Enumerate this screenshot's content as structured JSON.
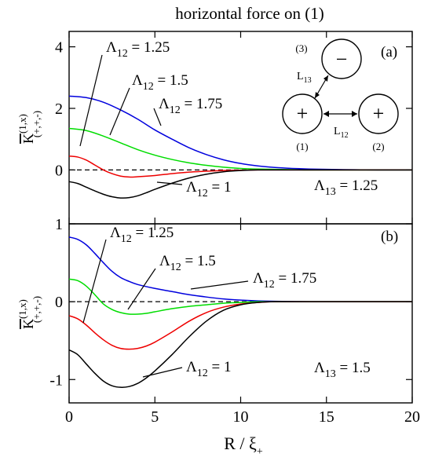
{
  "title": "horizontal force on (1)",
  "xlabel": "R / ξ",
  "xlabel_sub": "+",
  "ylabel": {
    "main": "K",
    "sup": "(1,x)",
    "sub": "(+,+,-)"
  },
  "colors": {
    "1": "#000000",
    "1.25": "#ee0000",
    "1.5": "#00dd00",
    "1.75": "#0000dd"
  },
  "chart_data": [
    {
      "type": "line",
      "panel": "(a)",
      "xlim": [
        0,
        20
      ],
      "ylim": [
        -1.75,
        4.5
      ],
      "xticks": [
        0,
        5,
        10,
        15,
        20
      ],
      "yticks": [
        -2,
        0,
        2,
        4
      ],
      "ytick_labels": [
        "",
        "0",
        "2",
        "4"
      ],
      "annotation": "Λ13 = 1.25",
      "series": [
        {
          "key": "1.75",
          "name": "Λ12 = 1.75",
          "x": [
            0,
            1,
            2,
            3,
            4,
            5,
            6,
            7,
            8,
            9,
            10,
            11,
            12,
            13,
            14,
            15,
            16,
            17,
            18,
            20
          ],
          "y": [
            2.4,
            2.35,
            2.2,
            1.95,
            1.65,
            1.3,
            1.0,
            0.72,
            0.5,
            0.33,
            0.21,
            0.13,
            0.08,
            0.05,
            0.03,
            0.02,
            0.01,
            0.005,
            0.0,
            0.0
          ]
        },
        {
          "key": "1.5",
          "name": "Λ12 = 1.5",
          "x": [
            0,
            1,
            2,
            3,
            4,
            5,
            6,
            7,
            8,
            9,
            10,
            11,
            12,
            13,
            14,
            16,
            18,
            20
          ],
          "y": [
            1.35,
            1.28,
            1.1,
            0.88,
            0.66,
            0.48,
            0.34,
            0.23,
            0.15,
            0.09,
            0.05,
            0.03,
            0.02,
            0.01,
            0.0,
            0.0,
            0.0,
            0.0
          ]
        },
        {
          "key": "1.25",
          "name": "Λ12 = 1.25",
          "x": [
            0,
            0.5,
            1,
            1.5,
            2,
            2.5,
            3,
            3.5,
            4,
            5,
            6,
            7,
            8,
            9,
            10,
            11,
            12,
            14,
            16,
            20
          ],
          "y": [
            0.45,
            0.42,
            0.32,
            0.16,
            0.0,
            -0.12,
            -0.2,
            -0.23,
            -0.22,
            -0.18,
            -0.12,
            -0.07,
            -0.04,
            -0.02,
            -0.01,
            0.0,
            0.0,
            0.0,
            0.0,
            0.0
          ]
        },
        {
          "key": "1",
          "name": "Λ12 = 1",
          "x": [
            0,
            0.5,
            1,
            1.5,
            2,
            2.5,
            3,
            3.5,
            4,
            4.5,
            5,
            6,
            7,
            8,
            9,
            10,
            11,
            12,
            14,
            20
          ],
          "y": [
            -0.38,
            -0.44,
            -0.56,
            -0.68,
            -0.79,
            -0.87,
            -0.91,
            -0.9,
            -0.84,
            -0.74,
            -0.63,
            -0.43,
            -0.26,
            -0.14,
            -0.06,
            -0.02,
            0.0,
            0.0,
            0.0,
            0.0
          ]
        }
      ],
      "labels": [
        {
          "key": "1.25",
          "text": "Λ12 = 1.25"
        },
        {
          "key": "1.5",
          "text": "Λ12 = 1.5"
        },
        {
          "key": "1.75",
          "text": "Λ12 = 1.75"
        },
        {
          "key": "1",
          "text": "Λ12 = 1"
        }
      ],
      "inset": {
        "circles": [
          {
            "id": "(1)",
            "sign": "+"
          },
          {
            "id": "(2)",
            "sign": "+"
          },
          {
            "id": "(3)",
            "sign": "−"
          }
        ],
        "distances": [
          "L12",
          "L13"
        ]
      }
    },
    {
      "type": "line",
      "panel": "(b)",
      "xlim": [
        0,
        20
      ],
      "ylim": [
        -1.3,
        1.0
      ],
      "xticks": [
        0,
        5,
        10,
        15,
        20
      ],
      "yticks": [
        -1,
        0,
        1
      ],
      "ytick_labels": [
        "-1",
        "0",
        "1"
      ],
      "annotation": "Λ13 = 1.5",
      "series": [
        {
          "key": "1.75",
          "name": "Λ12 = 1.75",
          "x": [
            0,
            0.5,
            1,
            1.5,
            2,
            2.5,
            3,
            3.5,
            4,
            5,
            6,
            7,
            8,
            9,
            10,
            11,
            12,
            14,
            16,
            20
          ],
          "y": [
            0.83,
            0.8,
            0.73,
            0.62,
            0.5,
            0.39,
            0.31,
            0.26,
            0.22,
            0.17,
            0.13,
            0.09,
            0.06,
            0.035,
            0.02,
            0.01,
            0.005,
            0.0,
            0.0,
            0.0
          ]
        },
        {
          "key": "1.5",
          "name": "Λ12 = 1.5",
          "x": [
            0,
            0.5,
            1,
            1.5,
            2,
            2.5,
            3,
            3.5,
            4,
            4.5,
            5,
            6,
            7,
            8,
            9,
            10,
            11,
            12,
            14,
            20
          ],
          "y": [
            0.29,
            0.27,
            0.2,
            0.09,
            -0.03,
            -0.1,
            -0.14,
            -0.16,
            -0.16,
            -0.15,
            -0.13,
            -0.09,
            -0.06,
            -0.04,
            -0.02,
            -0.01,
            0.0,
            0.0,
            0.0,
            0.0
          ]
        },
        {
          "key": "1.25",
          "name": "Λ12 = 1.25",
          "x": [
            0,
            0.5,
            1,
            1.5,
            2,
            2.5,
            3,
            3.5,
            4,
            4.5,
            5,
            6,
            7,
            8,
            9,
            10,
            11,
            12,
            14,
            20
          ],
          "y": [
            -0.18,
            -0.22,
            -0.3,
            -0.4,
            -0.49,
            -0.56,
            -0.6,
            -0.61,
            -0.6,
            -0.57,
            -0.52,
            -0.39,
            -0.25,
            -0.14,
            -0.07,
            -0.03,
            -0.01,
            0.0,
            0.0,
            0.0
          ]
        },
        {
          "key": "1",
          "name": "Λ12 = 1",
          "x": [
            0,
            0.5,
            1,
            1.5,
            2,
            2.5,
            3,
            3.5,
            4,
            4.5,
            5,
            6,
            7,
            8,
            9,
            10,
            11,
            12,
            14,
            20
          ],
          "y": [
            -0.62,
            -0.68,
            -0.8,
            -0.92,
            -1.02,
            -1.08,
            -1.1,
            -1.09,
            -1.05,
            -0.98,
            -0.89,
            -0.68,
            -0.45,
            -0.25,
            -0.11,
            -0.04,
            -0.01,
            0.0,
            0.0,
            0.0
          ]
        }
      ],
      "labels": [
        {
          "key": "1.25",
          "text": "Λ12 = 1.25"
        },
        {
          "key": "1.5",
          "text": "Λ12 = 1.5"
        },
        {
          "key": "1.75",
          "text": "Λ12 = 1.75"
        },
        {
          "key": "1",
          "text": "Λ12 = 1"
        }
      ]
    }
  ]
}
